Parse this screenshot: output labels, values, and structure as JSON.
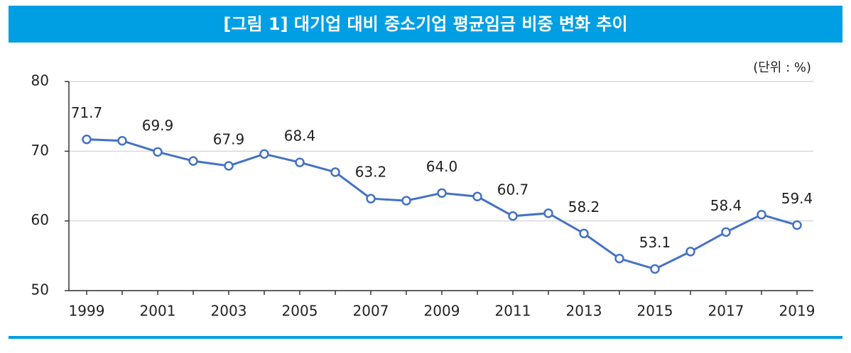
{
  "title": "[그림 1] 대기업 대비 중소기업 평균임금 비중 변화 추이",
  "unit_note": "(단위 : %)",
  "chart_data": {
    "type": "line",
    "categories": [
      "1999",
      null,
      "2001",
      null,
      "2003",
      null,
      "2005",
      null,
      "2007",
      null,
      "2009",
      null,
      "2011",
      null,
      "2013",
      null,
      "2015",
      null,
      "2017",
      null,
      "2019"
    ],
    "series": [
      {
        "color": "#4472c4",
        "values": [
          71.7,
          71.5,
          69.9,
          68.6,
          67.9,
          69.6,
          68.4,
          67.0,
          63.2,
          62.9,
          64.0,
          63.5,
          60.7,
          61.1,
          58.2,
          54.6,
          53.1,
          55.6,
          58.4,
          60.9,
          59.4
        ],
        "value_labels": [
          "71.7",
          null,
          "69.9",
          null,
          "67.9",
          null,
          "68.4",
          null,
          "63.2",
          null,
          "64.0",
          null,
          "60.7",
          null,
          "58.2",
          null,
          "53.1",
          null,
          "58.4",
          null,
          "59.4"
        ]
      }
    ],
    "ylim": [
      50,
      80
    ],
    "yticks": [
      50,
      60,
      70,
      80
    ],
    "grid": true
  }
}
